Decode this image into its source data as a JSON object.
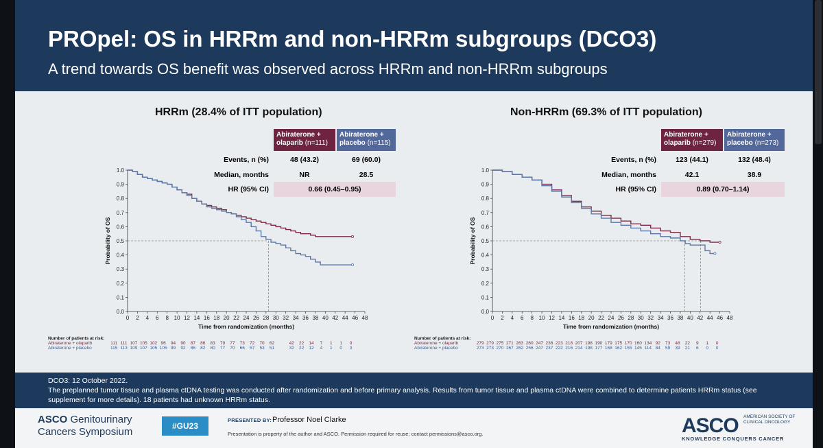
{
  "slide": {
    "title": "PROpel: OS in HRRm and non-HRRm subgroups (DCO3)",
    "subtitle": "A trend towards OS benefit was observed across HRRm and non-HRRm subgroups"
  },
  "panels": [
    {
      "title": "HRRm (28.4% of ITT population)",
      "table": {
        "col1_a": "Abiraterone +",
        "col1_b": "olaparib",
        "col1_n": "(n=111)",
        "col2_a": "Abiraterone +",
        "col2_b": "placebo",
        "col2_n": "(n=115)",
        "events_label": "Events, n (%)",
        "events_1": "48 (43.2)",
        "events_2": "69 (60.0)",
        "median_label": "Median, months",
        "median_1": "NR",
        "median_2": "28.5",
        "hr_label": "HR (95% CI)",
        "hr": "0.66 (0.45–0.95)"
      },
      "risk": {
        "title": "Number of patients at risk:",
        "olaparib_label": "Abiraterone + olaparib",
        "placebo_label": "Abiraterone + placebo",
        "olaparib": [
          "111",
          "111",
          "107",
          "105",
          "102",
          "96",
          "94",
          "90",
          "87",
          "86",
          "83",
          "79",
          "77",
          "73",
          "72",
          "70",
          "62",
          "",
          "42",
          "22",
          "14",
          "7",
          "1",
          "1",
          "0"
        ],
        "placebo": [
          "115",
          "113",
          "109",
          "107",
          "105",
          "105",
          "99",
          "92",
          "86",
          "82",
          "80",
          "77",
          "70",
          "66",
          "57",
          "53",
          "51",
          "",
          "32",
          "22",
          "12",
          "4",
          "1",
          "0",
          "0"
        ]
      }
    },
    {
      "title": "Non-HRRm (69.3% of ITT population)",
      "table": {
        "col1_a": "Abiraterone +",
        "col1_b": "olaparib",
        "col1_n": "(n=279)",
        "col2_a": "Abiraterone +",
        "col2_b": "placebo",
        "col2_n": "(n=273)",
        "events_label": "Events, n (%)",
        "events_1": "123 (44.1)",
        "events_2": "132 (48.4)",
        "median_label": "Median, months",
        "median_1": "42.1",
        "median_2": "38.9",
        "hr_label": "HR (95% CI)",
        "hr": "0.89 (0.70–1.14)"
      },
      "risk": {
        "title": "Number of patients at risk:",
        "olaparib_label": "Abiraterone + olaparib",
        "placebo_label": "Abiraterone + placebo",
        "olaparib": [
          "279",
          "279",
          "275",
          "271",
          "263",
          "260",
          "247",
          "236",
          "223",
          "218",
          "207",
          "198",
          "190",
          "179",
          "175",
          "170",
          "160",
          "134",
          "92",
          "73",
          "48",
          "22",
          "9",
          "1",
          "0"
        ],
        "placebo": [
          "273",
          "273",
          "270",
          "267",
          "262",
          "256",
          "247",
          "237",
          "222",
          "216",
          "214",
          "198",
          "177",
          "168",
          "162",
          "155",
          "145",
          "114",
          "84",
          "59",
          "39",
          "21",
          "6",
          "0",
          "0"
        ]
      }
    }
  ],
  "chart_data": [
    {
      "type": "line",
      "title": "HRRm (28.4% of ITT population)",
      "xlabel": "Time from randomization (months)",
      "ylabel": "Probability of OS",
      "xlim": [
        0,
        48
      ],
      "ylim": [
        0,
        1.0
      ],
      "xticks": [
        "0",
        "2",
        "4",
        "6",
        "8",
        "10",
        "12",
        "14",
        "16",
        "18",
        "20",
        "22",
        "24",
        "26",
        "28",
        "30",
        "32",
        "34",
        "36",
        "38",
        "40",
        "42",
        "44",
        "46",
        "48"
      ],
      "yticks": [
        "0.0",
        "0.1",
        "0.2",
        "0.3",
        "0.4",
        "0.5",
        "0.6",
        "0.7",
        "0.8",
        "0.9",
        "1.0"
      ],
      "reference_y": 0.5,
      "median_markers": [
        28.5
      ],
      "series": [
        {
          "name": "Abiraterone + olaparib",
          "color": "#7a2a45",
          "points": [
            [
              0,
              1.0
            ],
            [
              1,
              0.99
            ],
            [
              2,
              0.97
            ],
            [
              3,
              0.95
            ],
            [
              4,
              0.94
            ],
            [
              5,
              0.93
            ],
            [
              6,
              0.92
            ],
            [
              7,
              0.91
            ],
            [
              8,
              0.9
            ],
            [
              9,
              0.88
            ],
            [
              10,
              0.86
            ],
            [
              11,
              0.84
            ],
            [
              12,
              0.83
            ],
            [
              13,
              0.8
            ],
            [
              14,
              0.78
            ],
            [
              15,
              0.76
            ],
            [
              16,
              0.75
            ],
            [
              17,
              0.74
            ],
            [
              18,
              0.73
            ],
            [
              19,
              0.72
            ],
            [
              20,
              0.7
            ],
            [
              21,
              0.69
            ],
            [
              22,
              0.68
            ],
            [
              23,
              0.67
            ],
            [
              24,
              0.66
            ],
            [
              25,
              0.65
            ],
            [
              26,
              0.64
            ],
            [
              27,
              0.63
            ],
            [
              28,
              0.62
            ],
            [
              29,
              0.61
            ],
            [
              30,
              0.6
            ],
            [
              31,
              0.59
            ],
            [
              32,
              0.58
            ],
            [
              33,
              0.57
            ],
            [
              34,
              0.56
            ],
            [
              35,
              0.55
            ],
            [
              36,
              0.55
            ],
            [
              37,
              0.54
            ],
            [
              38,
              0.53
            ],
            [
              40,
              0.53
            ],
            [
              42,
              0.53
            ],
            [
              44,
              0.53
            ],
            [
              45.5,
              0.53
            ]
          ]
        },
        {
          "name": "Abiraterone + placebo",
          "color": "#5b78a8",
          "points": [
            [
              0,
              1.0
            ],
            [
              1,
              0.99
            ],
            [
              2,
              0.97
            ],
            [
              3,
              0.95
            ],
            [
              4,
              0.94
            ],
            [
              5,
              0.93
            ],
            [
              6,
              0.92
            ],
            [
              7,
              0.91
            ],
            [
              8,
              0.9
            ],
            [
              9,
              0.88
            ],
            [
              10,
              0.86
            ],
            [
              11,
              0.84
            ],
            [
              12,
              0.82
            ],
            [
              13,
              0.8
            ],
            [
              14,
              0.78
            ],
            [
              15,
              0.76
            ],
            [
              16,
              0.74
            ],
            [
              17,
              0.73
            ],
            [
              18,
              0.72
            ],
            [
              19,
              0.71
            ],
            [
              20,
              0.7
            ],
            [
              21,
              0.69
            ],
            [
              22,
              0.67
            ],
            [
              23,
              0.65
            ],
            [
              24,
              0.63
            ],
            [
              25,
              0.6
            ],
            [
              26,
              0.57
            ],
            [
              27,
              0.53
            ],
            [
              28,
              0.51
            ],
            [
              29,
              0.49
            ],
            [
              30,
              0.48
            ],
            [
              31,
              0.47
            ],
            [
              32,
              0.45
            ],
            [
              33,
              0.43
            ],
            [
              34,
              0.41
            ],
            [
              35,
              0.4
            ],
            [
              36,
              0.39
            ],
            [
              37,
              0.37
            ],
            [
              38,
              0.35
            ],
            [
              39,
              0.33
            ],
            [
              40,
              0.33
            ],
            [
              42,
              0.33
            ],
            [
              44,
              0.33
            ],
            [
              45.5,
              0.33
            ]
          ]
        }
      ]
    },
    {
      "type": "line",
      "title": "Non-HRRm (69.3% of ITT population)",
      "xlabel": "Time from randomization (months)",
      "ylabel": "Probability of OS",
      "xlim": [
        0,
        48
      ],
      "ylim": [
        0,
        1.0
      ],
      "xticks": [
        "0",
        "2",
        "4",
        "6",
        "8",
        "10",
        "12",
        "14",
        "16",
        "18",
        "20",
        "22",
        "24",
        "26",
        "28",
        "30",
        "32",
        "34",
        "36",
        "38",
        "40",
        "42",
        "44",
        "46",
        "48"
      ],
      "yticks": [
        "0.0",
        "0.1",
        "0.2",
        "0.3",
        "0.4",
        "0.5",
        "0.6",
        "0.7",
        "0.8",
        "0.9",
        "1.0"
      ],
      "reference_y": 0.5,
      "median_markers": [
        38.9,
        42.1
      ],
      "series": [
        {
          "name": "Abiraterone + olaparib",
          "color": "#7a2a45",
          "points": [
            [
              0,
              1.0
            ],
            [
              2,
              0.99
            ],
            [
              4,
              0.97
            ],
            [
              6,
              0.95
            ],
            [
              8,
              0.93
            ],
            [
              10,
              0.9
            ],
            [
              12,
              0.86
            ],
            [
              14,
              0.82
            ],
            [
              16,
              0.78
            ],
            [
              18,
              0.74
            ],
            [
              20,
              0.71
            ],
            [
              22,
              0.68
            ],
            [
              24,
              0.66
            ],
            [
              26,
              0.64
            ],
            [
              28,
              0.62
            ],
            [
              30,
              0.61
            ],
            [
              32,
              0.59
            ],
            [
              34,
              0.57
            ],
            [
              36,
              0.56
            ],
            [
              38,
              0.53
            ],
            [
              40,
              0.51
            ],
            [
              42,
              0.5
            ],
            [
              44,
              0.49
            ],
            [
              46,
              0.49
            ]
          ]
        },
        {
          "name": "Abiraterone + placebo",
          "color": "#5b78a8",
          "points": [
            [
              0,
              1.0
            ],
            [
              2,
              0.99
            ],
            [
              4,
              0.97
            ],
            [
              6,
              0.95
            ],
            [
              8,
              0.93
            ],
            [
              10,
              0.89
            ],
            [
              12,
              0.85
            ],
            [
              14,
              0.81
            ],
            [
              16,
              0.77
            ],
            [
              18,
              0.73
            ],
            [
              20,
              0.69
            ],
            [
              22,
              0.66
            ],
            [
              24,
              0.63
            ],
            [
              26,
              0.61
            ],
            [
              28,
              0.59
            ],
            [
              30,
              0.57
            ],
            [
              32,
              0.55
            ],
            [
              34,
              0.53
            ],
            [
              36,
              0.52
            ],
            [
              38,
              0.5
            ],
            [
              39,
              0.48
            ],
            [
              40,
              0.47
            ],
            [
              42,
              0.47
            ],
            [
              43,
              0.43
            ],
            [
              44,
              0.41
            ],
            [
              45,
              0.41
            ]
          ]
        }
      ]
    }
  ],
  "footnotes": {
    "line1": "DCO3: 12 October 2022.",
    "line2": "The preplanned tumor tissue and plasma ctDNA testing was conducted after randomization and before primary analysis. Results from tumor tissue and plasma ctDNA were combined to determine patients HRRm status (see",
    "line3": "supplement for more details). 18 patients had unknown HRRm status."
  },
  "footer": {
    "asco_gu_1": "ASCO",
    "asco_gu_1b": "Genitourinary",
    "asco_gu_2": "Cancers Symposium",
    "hashtag": "#GU23",
    "presented_by": "PRESENTED BY:",
    "presenter": "Professor Noel Clarke",
    "property_note": "Presentation is property of the author and ASCO. Permission required for reuse; contact permissions@asco.org.",
    "asco_logo": "ASCO",
    "asco_society": "AMERICAN SOCIETY OF CLINICAL ONCOLOGY",
    "asco_tagline": "KNOWLEDGE CONQUERS CANCER"
  },
  "colors": {
    "navy": "#1d3a5c",
    "olaparib": "#7a2a45",
    "placebo": "#5b78a8",
    "hr_band": "#e9d5de"
  }
}
